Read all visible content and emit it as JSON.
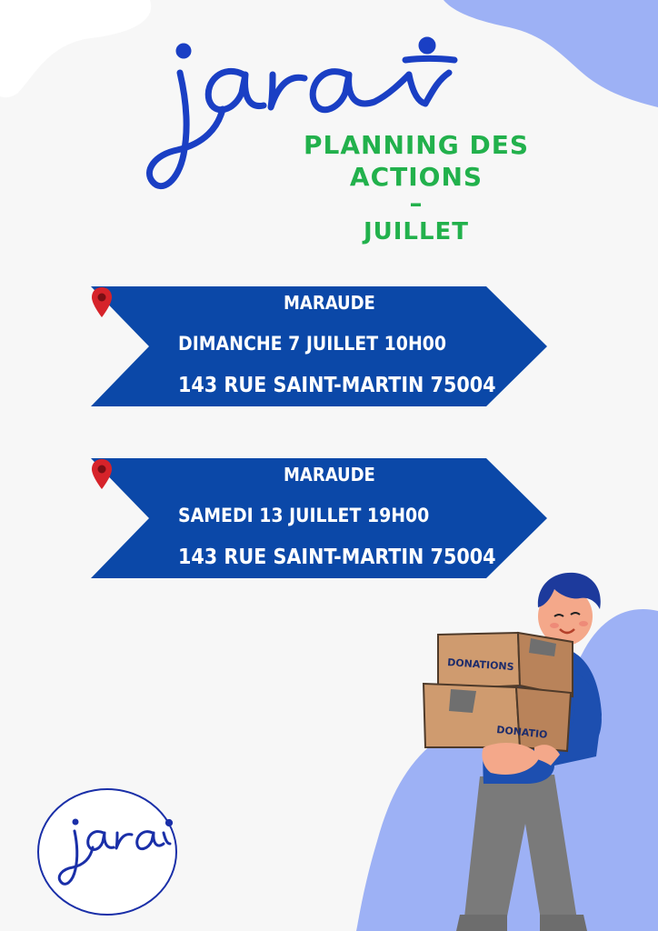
{
  "brand": {
    "logo_text": "jara"
  },
  "colors": {
    "primary_blue": "#0b48a8",
    "accent_green": "#22b14c",
    "blob_blue": "#9db1f5",
    "pin_red": "#d6232a"
  },
  "header": {
    "title_line1": "PLANNING DES ACTIONS",
    "title_line2": "–",
    "title_line3": "JUILLET"
  },
  "events": [
    {
      "type": "MARAUDE",
      "datetime": "DIMANCHE 7 JUILLET 10H00",
      "address": "143 RUE SAINT-MARTIN 75004",
      "icon": "location-pin-icon"
    },
    {
      "type": "MARAUDE",
      "datetime": "SAMEDI 13 JUILLET 19H00",
      "address": "143 RUE SAINT-MARTIN 75004",
      "icon": "location-pin-icon"
    }
  ],
  "illustration": {
    "box_label_top": "DONATIONS",
    "box_label_bottom": "DONATIO"
  }
}
